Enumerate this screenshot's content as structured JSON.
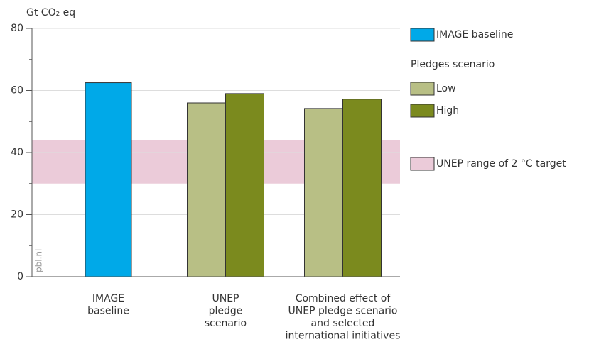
{
  "chart_data": {
    "type": "bar",
    "y_label": "Gt CO₂ eq",
    "categories": [
      "IMAGE\nbaseline",
      "UNEP\npledge\nscenario",
      "Combined effect of\nUNEP pledge scenario\nand selected\ninternational initiatives"
    ],
    "series": [
      {
        "name": "IMAGE baseline",
        "color": "#00a9e8",
        "values": [
          62.5,
          null,
          null
        ]
      },
      {
        "name": "Low",
        "color": "#b8bf85",
        "values": [
          null,
          56,
          54.2
        ]
      },
      {
        "name": "High",
        "color": "#7b8a1e",
        "values": [
          null,
          59,
          57.2
        ]
      }
    ],
    "legend_group": "Pledges scenario",
    "band": {
      "name": "UNEP range of 2 °C target",
      "color": "#ebcbd9",
      "range": [
        30,
        44
      ]
    },
    "ylim": [
      0,
      80
    ],
    "yticks": [
      0,
      20,
      40,
      60,
      80
    ],
    "grid": true,
    "watermark": "pbl.nl"
  }
}
